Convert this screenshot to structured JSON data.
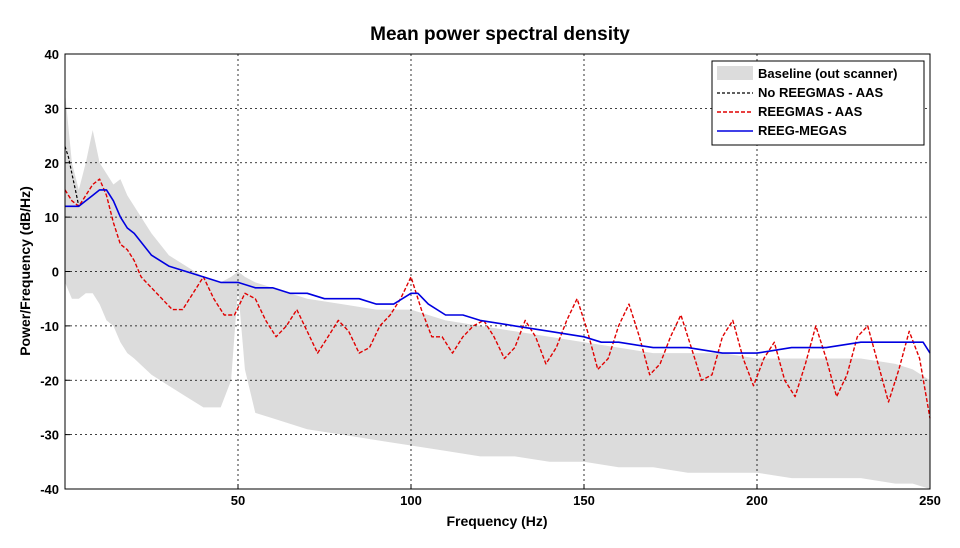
{
  "chart_data": {
    "type": "line",
    "title": "Mean power spectral density",
    "xlabel": "Frequency (Hz)",
    "ylabel": "Power/Frequency (dB/Hz)",
    "xlim": [
      0,
      250
    ],
    "ylim": [
      -40,
      40
    ],
    "xticks": [
      50,
      100,
      150,
      200,
      250
    ],
    "yticks": [
      -40,
      -30,
      -20,
      -10,
      0,
      10,
      20,
      30,
      40
    ],
    "grid": true,
    "legend_position": "top-right",
    "baseline_band": {
      "name": "Baseline (out scanner)",
      "color": "#dcdcdc",
      "x": [
        0,
        2,
        4,
        6,
        8,
        10,
        12,
        14,
        16,
        18,
        20,
        25,
        30,
        35,
        40,
        45,
        48,
        50,
        52,
        55,
        60,
        70,
        80,
        90,
        100,
        110,
        120,
        130,
        140,
        150,
        160,
        170,
        180,
        190,
        200,
        210,
        220,
        230,
        240,
        245,
        250
      ],
      "upper": [
        33,
        20,
        15,
        20,
        26,
        20,
        18,
        16,
        17,
        14,
        12,
        7,
        3,
        1,
        -1,
        -2,
        -1,
        0,
        -1,
        -2,
        -3,
        -5,
        -6,
        -7,
        -7,
        -9,
        -10,
        -11,
        -12,
        -13,
        -14,
        -15,
        -15,
        -15,
        -16,
        -16,
        -16,
        -16,
        -17,
        -18,
        -20
      ],
      "lower": [
        -2,
        -5,
        -5,
        -4,
        -4,
        -6,
        -9,
        -10,
        -13,
        -15,
        -16,
        -19,
        -21,
        -23,
        -25,
        -25,
        -20,
        -3,
        -18,
        -26,
        -27,
        -29,
        -30,
        -31,
        -32,
        -33,
        -34,
        -34,
        -35,
        -35,
        -36,
        -36,
        -37,
        -37,
        -37,
        -38,
        -38,
        -38,
        -39,
        -39,
        -40
      ]
    },
    "series": [
      {
        "name": "No REEGMAS - AAS",
        "color": "#000000",
        "style": "dashed",
        "x": [
          0,
          1,
          2,
          3,
          4
        ],
        "y": [
          23,
          21,
          18,
          15,
          12
        ]
      },
      {
        "name": "REEGMAS - AAS",
        "color": "#e00000",
        "style": "dashed",
        "x": [
          0,
          2,
          4,
          6,
          8,
          10,
          12,
          14,
          16,
          18,
          20,
          22,
          25,
          28,
          31,
          34,
          37,
          40,
          43,
          46,
          49,
          52,
          55,
          58,
          61,
          64,
          67,
          70,
          73,
          76,
          79,
          82,
          85,
          88,
          91,
          94,
          97,
          100,
          103,
          106,
          109,
          112,
          115,
          118,
          121,
          124,
          127,
          130,
          133,
          136,
          139,
          142,
          145,
          148,
          151,
          154,
          157,
          160,
          163,
          166,
          169,
          172,
          175,
          178,
          181,
          184,
          187,
          190,
          193,
          196,
          199,
          202,
          205,
          208,
          211,
          214,
          217,
          220,
          223,
          226,
          229,
          232,
          235,
          238,
          241,
          244,
          247,
          250
        ],
        "y": [
          15,
          13,
          12,
          14,
          16,
          17,
          14,
          9,
          5,
          4,
          2,
          -1,
          -3,
          -5,
          -7,
          -7,
          -4,
          -1,
          -5,
          -8,
          -8,
          -4,
          -5,
          -9,
          -12,
          -10,
          -7,
          -11,
          -15,
          -12,
          -9,
          -11,
          -15,
          -14,
          -10,
          -8,
          -5,
          -1,
          -7,
          -12,
          -12,
          -15,
          -12,
          -10,
          -9,
          -12,
          -16,
          -14,
          -9,
          -12,
          -17,
          -14,
          -9,
          -5,
          -11,
          -18,
          -16,
          -10,
          -6,
          -12,
          -19,
          -17,
          -12,
          -8,
          -14,
          -20,
          -19,
          -12,
          -9,
          -16,
          -21,
          -16,
          -13,
          -20,
          -23,
          -17,
          -10,
          -16,
          -23,
          -19,
          -12,
          -10,
          -17,
          -24,
          -18,
          -11,
          -16,
          -27
        ]
      },
      {
        "name": "REEG-MEGAS",
        "color": "#0000e0",
        "style": "solid",
        "x": [
          0,
          2,
          4,
          6,
          8,
          10,
          12,
          14,
          16,
          18,
          20,
          25,
          30,
          35,
          40,
          45,
          50,
          55,
          60,
          65,
          70,
          75,
          80,
          85,
          90,
          95,
          100,
          102,
          105,
          110,
          115,
          120,
          130,
          140,
          150,
          155,
          160,
          170,
          180,
          190,
          200,
          210,
          220,
          230,
          240,
          245,
          248,
          250
        ],
        "y": [
          12,
          12,
          12,
          13,
          14,
          15,
          15,
          13,
          10,
          8,
          7,
          3,
          1,
          0,
          -1,
          -2,
          -2,
          -3,
          -3,
          -4,
          -4,
          -5,
          -5,
          -5,
          -6,
          -6,
          -4,
          -4,
          -6,
          -8,
          -8,
          -9,
          -10,
          -11,
          -12,
          -13,
          -13,
          -14,
          -14,
          -15,
          -15,
          -14,
          -14,
          -13,
          -13,
          -13,
          -13,
          -15
        ]
      }
    ]
  }
}
